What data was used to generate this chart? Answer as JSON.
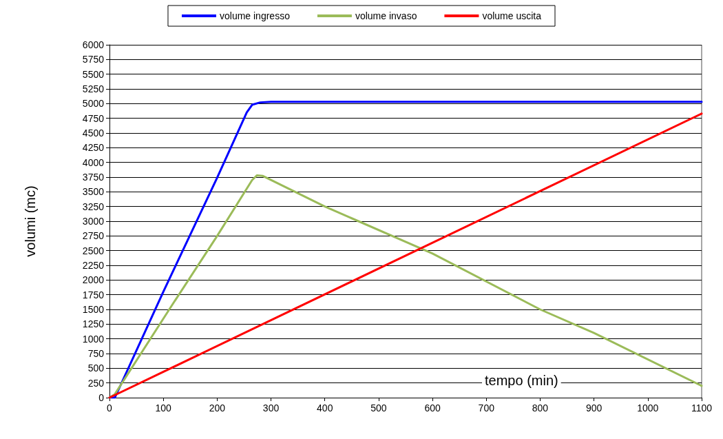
{
  "chart_data": {
    "type": "line",
    "xlabel": "tempo (min)",
    "ylabel": "volumi (mc)",
    "xlim": [
      0,
      1100
    ],
    "xticks": [
      0,
      100,
      200,
      300,
      400,
      500,
      600,
      700,
      800,
      900,
      1000,
      1100
    ],
    "ylim": [
      0,
      6000
    ],
    "yticks": [
      0,
      250,
      500,
      750,
      1000,
      1250,
      1500,
      1750,
      2000,
      2250,
      2500,
      2750,
      3000,
      3250,
      3500,
      3750,
      4000,
      4250,
      4500,
      4750,
      5000,
      5250,
      5500,
      5750,
      6000
    ],
    "grid": "y",
    "legend": "top",
    "marker": "none",
    "line_style": "solid",
    "series": [
      {
        "name": "volume ingresso",
        "color": "#0000ff",
        "x": [
          0,
          10,
          100,
          200,
          255,
          265,
          280,
          300,
          1100
        ],
        "values": [
          0,
          0,
          1800,
          3740,
          4850,
          4980,
          5020,
          5030,
          5030
        ]
      },
      {
        "name": "volume invaso",
        "color": "#9bbb59",
        "x": [
          0,
          10,
          116,
          200,
          265,
          274,
          285,
          400,
          600,
          800,
          900,
          1100
        ],
        "values": [
          0,
          60,
          1570,
          2750,
          3700,
          3780,
          3770,
          3250,
          2450,
          1500,
          1100,
          200
        ]
      },
      {
        "name": "volume uscita",
        "color": "#ff0000",
        "x": [
          0,
          1100
        ],
        "values": [
          0,
          4830
        ]
      }
    ]
  }
}
